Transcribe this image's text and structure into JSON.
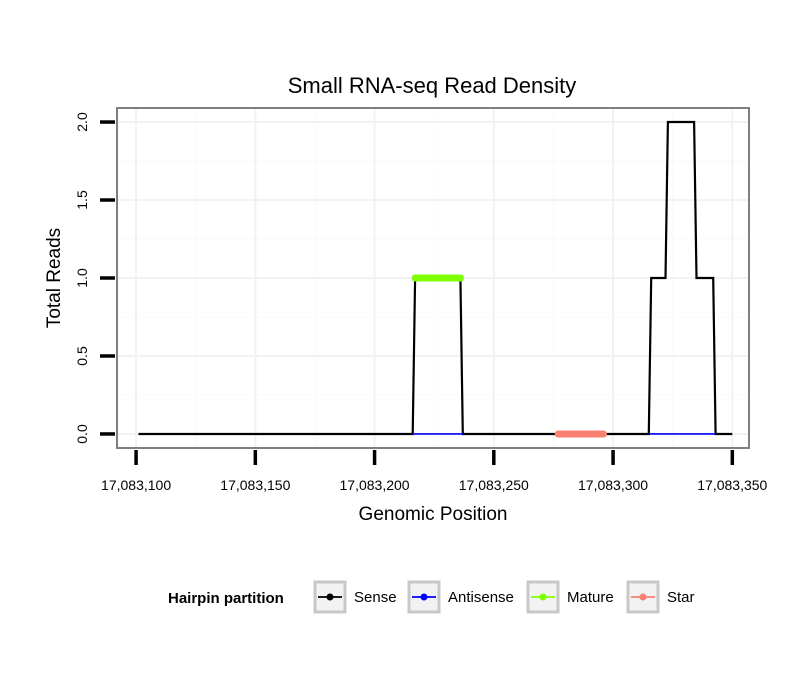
{
  "chart_data": {
    "type": "line",
    "title": "Small RNA-seq Read Density",
    "xlabel": "Genomic Position",
    "ylabel": "Total Reads",
    "xlim": [
      17083092,
      17083357
    ],
    "ylim": [
      -0.09,
      2.09
    ],
    "x_ticks": [
      17083100,
      17083150,
      17083200,
      17083250,
      17083300,
      17083350
    ],
    "x_tick_labels": [
      "17,083,100",
      "17,083,150",
      "17,083,200",
      "17,083,250",
      "17,083,300",
      "17,083,350"
    ],
    "y_ticks": [
      0.0,
      0.5,
      1.0,
      1.5,
      2.0
    ],
    "y_tick_labels": [
      "0.0",
      "0.5",
      "1.0",
      "1.5",
      "2.0"
    ],
    "grid": true,
    "legend": {
      "title": "Hairpin partition",
      "position": "bottom",
      "entries": [
        {
          "label": "Sense",
          "color": "#000000"
        },
        {
          "label": "Antisense",
          "color": "#0000ff"
        },
        {
          "label": "Mature",
          "color": "#7fff00"
        },
        {
          "label": "Star",
          "color": "#fa8072"
        }
      ]
    },
    "series": [
      {
        "name": "Sense",
        "color": "#000000",
        "x": [
          17083101,
          17083216,
          17083217,
          17083236,
          17083237,
          17083315,
          17083316,
          17083322,
          17083323,
          17083334,
          17083335,
          17083342,
          17083343,
          17083350
        ],
        "y": [
          0,
          0,
          1,
          1,
          0,
          0,
          1,
          1,
          2,
          2,
          1,
          1,
          0,
          0
        ]
      },
      {
        "name": "Antisense",
        "color": "#0000ff",
        "x": [
          17083216,
          17083237,
          17083315,
          17083343
        ],
        "y": [
          0,
          0,
          0,
          0
        ],
        "segments": [
          [
            0,
            1
          ],
          [
            2,
            3
          ]
        ]
      },
      {
        "name": "Mature",
        "color": "#7fff00",
        "x": [
          17083217,
          17083236
        ],
        "y": [
          1,
          1
        ]
      },
      {
        "name": "Star",
        "color": "#fa8072",
        "x": [
          17083277,
          17083296
        ],
        "y": [
          0,
          0
        ]
      }
    ]
  }
}
